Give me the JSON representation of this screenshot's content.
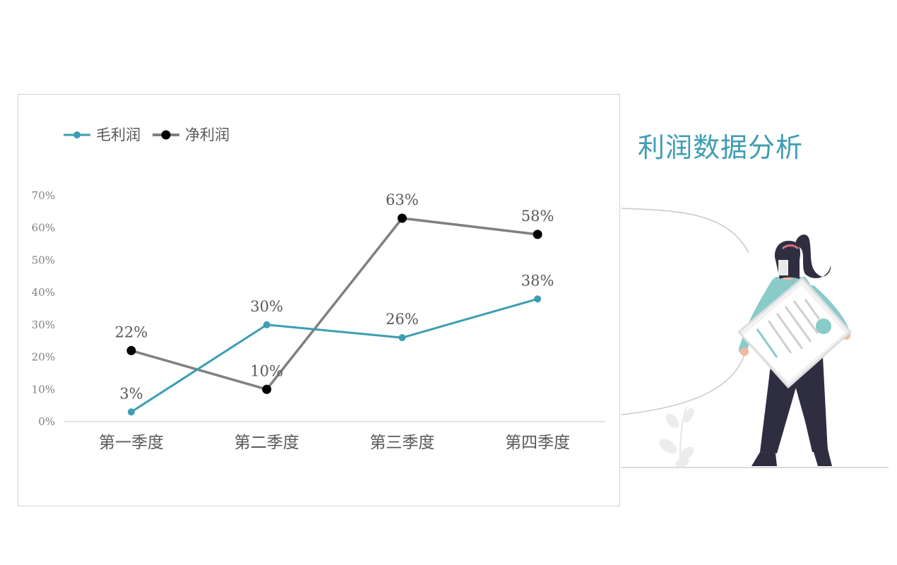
{
  "page": {
    "title": "利润数据分析"
  },
  "colors": {
    "gross": "#3d9db3",
    "net_line": "#808080",
    "net_marker": "#000000",
    "axis": "#d9d9d9",
    "tick_text": "#808080",
    "label_text": "#595959",
    "accent": "#3d9db3"
  },
  "chart_data": {
    "type": "line",
    "categories": [
      "第一季度",
      "第二季度",
      "第三季度",
      "第四季度"
    ],
    "series": [
      {
        "name": "毛利润",
        "values": [
          3,
          30,
          26,
          38
        ],
        "labels": [
          "3%",
          "30%",
          "26%",
          "38%"
        ]
      },
      {
        "name": "净利润",
        "values": [
          22,
          10,
          63,
          58
        ],
        "labels": [
          "22%",
          "10%",
          "63%",
          "58%"
        ]
      }
    ],
    "ylim": [
      0,
      70
    ],
    "yticks": [
      "0%",
      "10%",
      "20%",
      "30%",
      "40%",
      "50%",
      "60%",
      "70%"
    ],
    "legend": "top-left",
    "grid": false
  },
  "illustration": {
    "icons": [
      "woman-holding-document-illustration",
      "leaf-plant-icon"
    ]
  }
}
